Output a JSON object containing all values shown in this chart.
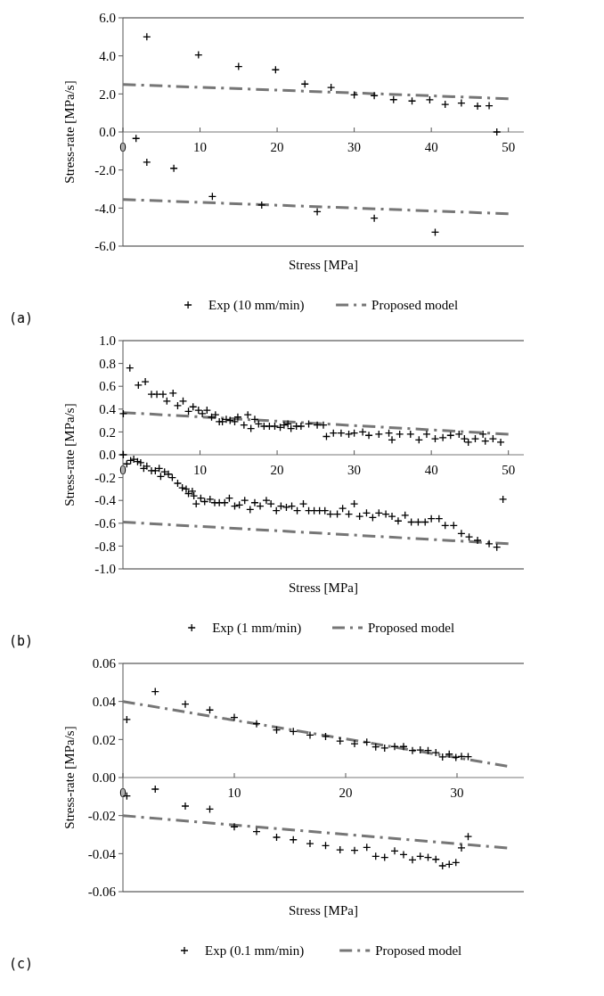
{
  "chart_data": [
    {
      "type": "scatter",
      "xlabel": "Stress [MPa]",
      "ylabel": "Stress-rate [MPa/s]",
      "xlim": [
        0,
        52
      ],
      "xticks": [
        0,
        10,
        20,
        30,
        40,
        50
      ],
      "ylim": [
        -6,
        6
      ],
      "yticks": [
        {
          "value": -6,
          "label": "-6.0"
        },
        {
          "value": -4,
          "label": "-4.0"
        },
        {
          "value": -2,
          "label": "-2.0"
        },
        {
          "value": 0,
          "label": "0.0"
        },
        {
          "value": 2,
          "label": "2.0"
        },
        {
          "value": 4,
          "label": "4.0"
        },
        {
          "value": 6,
          "label": "6.0"
        }
      ],
      "legend": "bottom",
      "annotations": [
        "(a)"
      ],
      "series": [
        {
          "name": "Exp (10 mm/min)",
          "type": "scatter",
          "marker": "cross",
          "color": "#000000",
          "x": [
            3.1,
            9.8,
            15.0,
            19.8,
            23.6,
            27.0,
            30.0,
            32.6,
            35.1,
            37.5,
            39.8,
            41.8,
            43.9,
            46.0,
            47.5,
            48.5,
            1.7,
            3.1,
            6.6,
            11.6,
            18.0,
            25.2,
            32.6,
            40.5
          ],
          "values": [
            5.0,
            4.05,
            3.44,
            3.27,
            2.52,
            2.34,
            1.95,
            1.91,
            1.7,
            1.63,
            1.69,
            1.45,
            1.52,
            1.36,
            1.38,
            0.0,
            -0.34,
            -1.59,
            -1.91,
            -3.39,
            -3.84,
            -4.19,
            -4.53,
            -5.27
          ]
        },
        {
          "name": "Proposed model",
          "type": "line",
          "line_style": "dashed",
          "color": "#767676",
          "x": [
            0,
            50
          ],
          "values": [
            2.5,
            1.75
          ]
        },
        {
          "type": "line",
          "line_style": "dashed",
          "color": "#767676",
          "x": [
            0,
            50
          ],
          "values": [
            -3.55,
            -4.3
          ]
        }
      ]
    },
    {
      "type": "scatter",
      "xlabel": "Stress [MPa]",
      "ylabel": "Stress-rate [MPa/s]",
      "xlim": [
        0,
        52
      ],
      "xticks": [
        0,
        10,
        20,
        30,
        40,
        50
      ],
      "ylim": [
        -1,
        1
      ],
      "yticks": [
        {
          "value": -1,
          "label": "-1.0"
        },
        {
          "value": -0.8,
          "label": "-0.8"
        },
        {
          "value": -0.6,
          "label": "-0.6"
        },
        {
          "value": -0.4,
          "label": "-0.4"
        },
        {
          "value": -0.2,
          "label": "-0.2"
        },
        {
          "value": 0,
          "label": "0.0"
        },
        {
          "value": 0.2,
          "label": "0.2"
        },
        {
          "value": 0.4,
          "label": "0.4"
        },
        {
          "value": 0.6,
          "label": "0.6"
        },
        {
          "value": 0.8,
          "label": "0.8"
        },
        {
          "value": 1,
          "label": "1.0"
        }
      ],
      "legend": "bottom",
      "annotations": [
        "(b)"
      ],
      "series": [
        {
          "name": "Exp (1 mm/min)",
          "type": "scatter",
          "marker": "cross",
          "color": "#000000",
          "x": [
            0.05,
            0.9,
            2.0,
            2.9,
            3.7,
            4.4,
            5.2,
            5.7,
            6.5,
            7.1,
            7.8,
            8.5,
            9.1,
            9.8,
            10.3,
            10.9,
            11.5,
            12.0,
            12.5,
            12.9,
            13.4,
            13.9,
            14.5,
            14.9,
            15.7,
            16.2,
            16.6,
            17.1,
            17.6,
            18.3,
            19.0,
            19.7,
            20.4,
            20.9,
            21.4,
            21.8,
            22.5,
            23.1,
            24.1,
            25.2,
            26.0,
            26.4,
            27.3,
            28.3,
            29.3,
            30.0,
            31.1,
            31.9,
            33.2,
            34.5,
            34.9,
            35.9,
            37.3,
            38.4,
            39.4,
            40.5,
            41.5,
            42.5,
            43.6,
            44.3,
            44.8,
            45.7,
            46.7,
            47.0,
            48.0,
            49.0,
            0.05,
            0.5,
            1.0,
            1.4,
            1.9,
            2.3,
            2.7,
            3.1,
            3.7,
            4.2,
            4.7,
            4.9,
            5.4,
            5.9,
            6.4,
            7.1,
            7.7,
            8.2,
            8.5,
            9.0,
            9.2,
            9.5,
            10.1,
            10.6,
            11.3,
            11.9,
            12.5,
            13.2,
            13.8,
            14.5,
            15.1,
            15.8,
            16.5,
            17.1,
            17.8,
            18.6,
            19.2,
            19.9,
            20.5,
            21.2,
            21.9,
            22.6,
            23.4,
            24.1,
            24.8,
            25.5,
            26.2,
            26.9,
            27.8,
            28.5,
            29.3,
            30.0,
            30.7,
            31.6,
            32.4,
            33.2,
            34.1,
            34.9,
            35.7,
            36.6,
            37.4,
            38.3,
            39.2,
            40.0,
            41.0,
            41.8,
            42.9,
            43.9,
            44.9,
            46.0,
            47.5,
            48.5,
            49.3
          ],
          "values": [
            0.36,
            0.76,
            0.61,
            0.64,
            0.53,
            0.53,
            0.53,
            0.47,
            0.54,
            0.43,
            0.47,
            0.38,
            0.42,
            0.39,
            0.36,
            0.39,
            0.33,
            0.35,
            0.29,
            0.29,
            0.31,
            0.3,
            0.29,
            0.33,
            0.26,
            0.35,
            0.23,
            0.31,
            0.27,
            0.25,
            0.25,
            0.25,
            0.24,
            0.26,
            0.27,
            0.23,
            0.25,
            0.25,
            0.27,
            0.26,
            0.26,
            0.16,
            0.19,
            0.19,
            0.18,
            0.19,
            0.2,
            0.17,
            0.18,
            0.19,
            0.13,
            0.18,
            0.18,
            0.13,
            0.18,
            0.14,
            0.15,
            0.17,
            0.18,
            0.14,
            0.11,
            0.14,
            0.18,
            0.12,
            0.14,
            0.11,
            0.0,
            -0.08,
            -0.05,
            -0.04,
            -0.06,
            -0.07,
            -0.12,
            -0.1,
            -0.14,
            -0.14,
            -0.12,
            -0.19,
            -0.15,
            -0.17,
            -0.2,
            -0.25,
            -0.29,
            -0.3,
            -0.34,
            -0.32,
            -0.36,
            -0.43,
            -0.38,
            -0.41,
            -0.39,
            -0.42,
            -0.42,
            -0.42,
            -0.38,
            -0.45,
            -0.44,
            -0.4,
            -0.48,
            -0.42,
            -0.45,
            -0.4,
            -0.43,
            -0.49,
            -0.45,
            -0.46,
            -0.45,
            -0.49,
            -0.43,
            -0.49,
            -0.49,
            -0.49,
            -0.49,
            -0.52,
            -0.52,
            -0.47,
            -0.52,
            -0.43,
            -0.54,
            -0.51,
            -0.55,
            -0.51,
            -0.52,
            -0.54,
            -0.58,
            -0.53,
            -0.59,
            -0.59,
            -0.59,
            -0.56,
            -0.56,
            -0.62,
            -0.62,
            -0.69,
            -0.72,
            -0.75,
            -0.78,
            -0.81,
            -0.39
          ]
        },
        {
          "name": "Proposed model",
          "type": "line",
          "line_style": "dashed",
          "color": "#767676",
          "x": [
            0,
            50
          ],
          "values": [
            0.37,
            0.18
          ]
        },
        {
          "type": "line",
          "line_style": "dashed",
          "color": "#767676",
          "x": [
            0,
            50
          ],
          "values": [
            -0.59,
            -0.78
          ]
        }
      ]
    },
    {
      "type": "scatter",
      "xlabel": "Stress [MPa]",
      "ylabel": "Stress-rate [MPa/s]",
      "xlim": [
        0,
        36
      ],
      "xticks": [
        0,
        10,
        20,
        30
      ],
      "ylim": [
        -0.06,
        0.06
      ],
      "yticks": [
        {
          "value": -0.06,
          "label": "-0.06"
        },
        {
          "value": -0.04,
          "label": "-0.04"
        },
        {
          "value": -0.02,
          "label": "-0.02"
        },
        {
          "value": 0,
          "label": "0.00"
        },
        {
          "value": 0.02,
          "label": "0.02"
        },
        {
          "value": 0.04,
          "label": "0.04"
        },
        {
          "value": 0.06,
          "label": "0.06"
        }
      ],
      "legend": "bottom",
      "annotations": [
        "(c)"
      ],
      "series": [
        {
          "name": "Exp (0.1 mm/min)",
          "type": "scatter",
          "marker": "cross",
          "color": "#000000",
          "x": [
            0.35,
            2.9,
            5.6,
            7.8,
            10.0,
            12.0,
            13.8,
            15.3,
            16.8,
            18.2,
            19.5,
            20.8,
            21.9,
            22.7,
            23.5,
            24.4,
            25.2,
            26.0,
            26.7,
            27.4,
            28.1,
            28.7,
            29.3,
            29.9,
            30.4,
            31.0,
            0.35,
            2.9,
            5.6,
            7.8,
            10.0,
            12.0,
            13.8,
            15.3,
            16.8,
            18.2,
            19.5,
            20.8,
            21.9,
            22.7,
            23.5,
            24.4,
            25.2,
            26.0,
            26.7,
            27.4,
            28.1,
            28.7,
            29.3,
            29.9,
            30.4,
            31.0
          ],
          "values": [
            0.0305,
            0.0452,
            0.0386,
            0.0355,
            0.0316,
            0.0283,
            0.025,
            0.0242,
            0.0223,
            0.0216,
            0.0192,
            0.0178,
            0.0186,
            0.0161,
            0.0155,
            0.0163,
            0.0163,
            0.0142,
            0.0145,
            0.0142,
            0.0131,
            0.0108,
            0.0123,
            0.0106,
            0.0111,
            0.011,
            -0.0097,
            -0.0061,
            -0.015,
            -0.0166,
            -0.0259,
            -0.0284,
            -0.0314,
            -0.0327,
            -0.0347,
            -0.0358,
            -0.038,
            -0.0383,
            -0.0367,
            -0.0414,
            -0.042,
            -0.0386,
            -0.0405,
            -0.0433,
            -0.0414,
            -0.042,
            -0.043,
            -0.0464,
            -0.0456,
            -0.0447,
            -0.037,
            -0.031
          ]
        },
        {
          "name": "Proposed model",
          "type": "line",
          "line_style": "dashed",
          "color": "#767676",
          "x": [
            0,
            34.5
          ],
          "values": [
            0.04,
            0.006
          ]
        },
        {
          "type": "line",
          "line_style": "dashed",
          "color": "#767676",
          "x": [
            0,
            34.5
          ],
          "values": [
            -0.02,
            -0.037
          ]
        }
      ]
    }
  ]
}
